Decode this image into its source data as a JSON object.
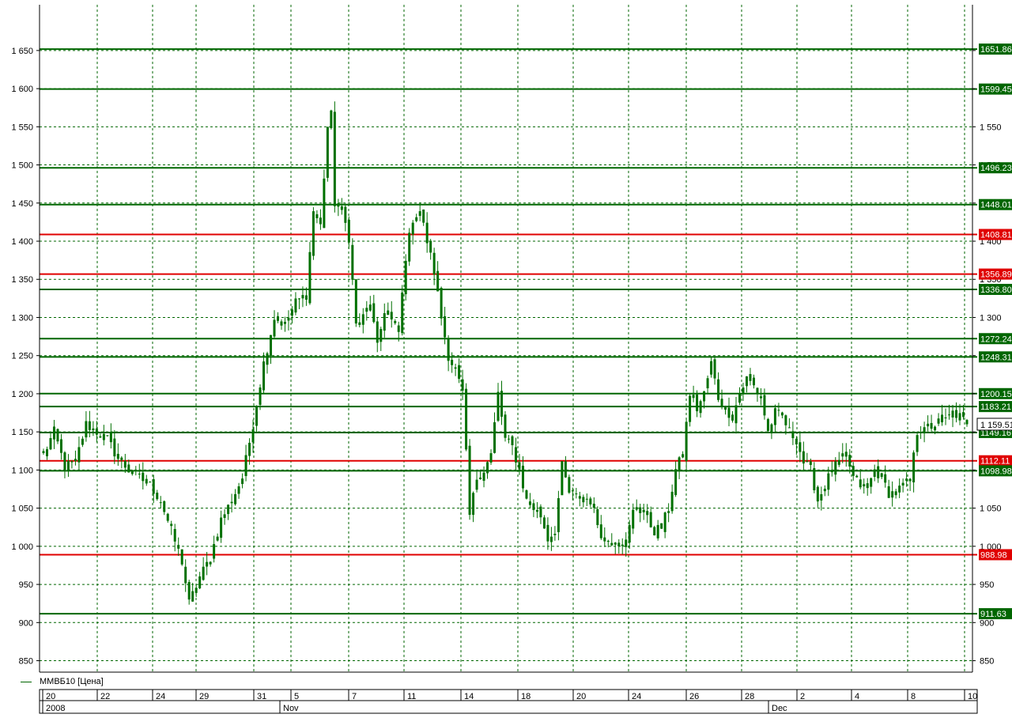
{
  "chart_data": {
    "type": "candlestick",
    "legend": "ММВБ10 [Цена]",
    "ylim": [
      835,
      1710
    ],
    "yticks": [
      850,
      900,
      950,
      1000,
      1050,
      1100,
      1150,
      1200,
      1250,
      1300,
      1350,
      1400,
      1450,
      1500,
      1550,
      1600,
      1650
    ],
    "ytick_labels": [
      "850",
      "900",
      "950",
      "1 000",
      "1 050",
      "1 100",
      "1 150",
      "1 200",
      "1 250",
      "1 300",
      "1 350",
      "1 400",
      "1 450",
      "1 500",
      "1 550",
      "1 600",
      "1 650"
    ],
    "x_day_labels": [
      "20",
      "22",
      "24",
      "29",
      "31",
      "5",
      "7",
      "11",
      "14",
      "18",
      "20",
      "24",
      "26",
      "28",
      "2",
      "4",
      "8",
      "10"
    ],
    "x_period_labels": [
      "2008",
      "Nov",
      "Dec"
    ],
    "last_price_label": "1 159.51",
    "colors": {
      "candle": "#007000",
      "support": "#006600",
      "resistance": "#e00000",
      "grid": "#006600"
    },
    "levels": [
      {
        "value": 1651.86,
        "label": "1651.86",
        "kind": "support"
      },
      {
        "value": 1599.45,
        "label": "1599.45",
        "kind": "support"
      },
      {
        "value": 1496.23,
        "label": "1496.23",
        "kind": "support"
      },
      {
        "value": 1448.01,
        "label": "1448.01",
        "kind": "support"
      },
      {
        "value": 1408.81,
        "label": "1408.81",
        "kind": "resistance"
      },
      {
        "value": 1356.89,
        "label": "1356.89",
        "kind": "resistance"
      },
      {
        "value": 1336.8,
        "label": "1336.80",
        "kind": "support"
      },
      {
        "value": 1272.24,
        "label": "1272.24",
        "kind": "support"
      },
      {
        "value": 1248.31,
        "label": "1248.31",
        "kind": "support"
      },
      {
        "value": 1200.15,
        "label": "1200.15",
        "kind": "support"
      },
      {
        "value": 1183.21,
        "label": "1183.21",
        "kind": "support"
      },
      {
        "value": 1149.16,
        "label": "1149.16",
        "kind": "support"
      },
      {
        "value": 1112.11,
        "label": "1112.11",
        "kind": "resistance"
      },
      {
        "value": 1098.98,
        "label": "1098.98",
        "kind": "support"
      },
      {
        "value": 988.98,
        "label": "988.98",
        "kind": "resistance"
      },
      {
        "value": 911.63,
        "label": "911.63",
        "kind": "support"
      }
    ],
    "path": [
      [
        0,
        1120
      ],
      [
        3,
        1150
      ],
      [
        6,
        1105
      ],
      [
        9,
        1110
      ],
      [
        12,
        1160
      ],
      [
        15,
        1150
      ],
      [
        18,
        1140
      ],
      [
        21,
        1115
      ],
      [
        24,
        1100
      ],
      [
        27,
        1090
      ],
      [
        30,
        1080
      ],
      [
        33,
        1060
      ],
      [
        36,
        1020
      ],
      [
        39,
        980
      ],
      [
        41,
        925
      ],
      [
        44,
        960
      ],
      [
        47,
        985
      ],
      [
        50,
        1035
      ],
      [
        53,
        1060
      ],
      [
        56,
        1090
      ],
      [
        59,
        1160
      ],
      [
        62,
        1240
      ],
      [
        65,
        1300
      ],
      [
        68,
        1290
      ],
      [
        71,
        1320
      ],
      [
        74,
        1330
      ],
      [
        76,
        1440
      ],
      [
        78,
        1420
      ],
      [
        80,
        1550
      ],
      [
        81,
        1565
      ],
      [
        82,
        1450
      ],
      [
        84,
        1440
      ],
      [
        86,
        1405
      ],
      [
        88,
        1290
      ],
      [
        90,
        1300
      ],
      [
        92,
        1320
      ],
      [
        94,
        1260
      ],
      [
        96,
        1310
      ],
      [
        98,
        1295
      ],
      [
        100,
        1280
      ],
      [
        102,
        1380
      ],
      [
        104,
        1430
      ],
      [
        106,
        1440
      ],
      [
        108,
        1400
      ],
      [
        110,
        1360
      ],
      [
        112,
        1300
      ],
      [
        114,
        1250
      ],
      [
        116,
        1230
      ],
      [
        118,
        1200
      ],
      [
        120,
        1040
      ],
      [
        122,
        1090
      ],
      [
        124,
        1100
      ],
      [
        126,
        1120
      ],
      [
        128,
        1200
      ],
      [
        130,
        1140
      ],
      [
        132,
        1130
      ],
      [
        134,
        1100
      ],
      [
        136,
        1060
      ],
      [
        138,
        1050
      ],
      [
        140,
        1040
      ],
      [
        142,
        1010
      ],
      [
        144,
        1020
      ],
      [
        146,
        1105
      ],
      [
        148,
        1070
      ],
      [
        150,
        1065
      ],
      [
        152,
        1065
      ],
      [
        154,
        1060
      ],
      [
        156,
        1030
      ],
      [
        158,
        1005
      ],
      [
        160,
        1010
      ],
      [
        162,
        1010
      ],
      [
        164,
        1005
      ],
      [
        166,
        1045
      ],
      [
        168,
        1055
      ],
      [
        170,
        1035
      ],
      [
        172,
        1020
      ],
      [
        174,
        1025
      ],
      [
        176,
        1050
      ],
      [
        178,
        1100
      ],
      [
        180,
        1120
      ],
      [
        182,
        1200
      ],
      [
        184,
        1180
      ],
      [
        186,
        1200
      ],
      [
        188,
        1240
      ],
      [
        190,
        1195
      ],
      [
        192,
        1180
      ],
      [
        194,
        1170
      ],
      [
        196,
        1200
      ],
      [
        198,
        1220
      ],
      [
        200,
        1210
      ],
      [
        202,
        1195
      ],
      [
        204,
        1150
      ],
      [
        206,
        1175
      ],
      [
        208,
        1170
      ],
      [
        210,
        1150
      ],
      [
        212,
        1140
      ],
      [
        214,
        1110
      ],
      [
        216,
        1100
      ],
      [
        218,
        1060
      ],
      [
        220,
        1080
      ],
      [
        222,
        1100
      ],
      [
        224,
        1110
      ],
      [
        226,
        1120
      ],
      [
        228,
        1090
      ],
      [
        230,
        1080
      ],
      [
        232,
        1075
      ],
      [
        234,
        1100
      ],
      [
        236,
        1090
      ],
      [
        238,
        1070
      ],
      [
        240,
        1070
      ],
      [
        242,
        1080
      ],
      [
        244,
        1085
      ],
      [
        246,
        1150
      ],
      [
        248,
        1160
      ],
      [
        250,
        1150
      ],
      [
        252,
        1170
      ],
      [
        254,
        1165
      ],
      [
        256,
        1175
      ],
      [
        258,
        1170
      ],
      [
        260,
        1160
      ]
    ]
  }
}
